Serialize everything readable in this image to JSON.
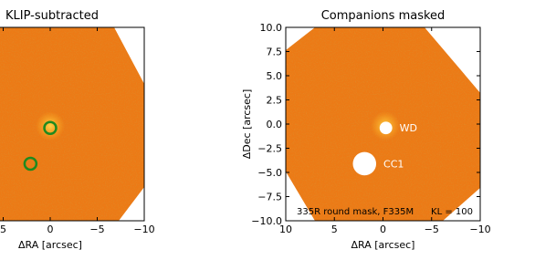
{
  "chart_data": [
    {
      "type": "image",
      "title": "KLIP-subtracted",
      "xlabel": "ΔRA [arcsec]",
      "xlim": [
        10,
        -10
      ],
      "ylim": [
        -10,
        10
      ],
      "xticks": [
        5,
        0,
        {
          "value": -5,
          "label": "−5"
        },
        {
          "value": -10,
          "label": "−10"
        }
      ],
      "markers": {
        "x": [
          0,
          2.1
        ],
        "y": [
          -0.4,
          -4.1
        ],
        "color": "#1f8a1f"
      }
    },
    {
      "type": "image",
      "title": "Companions masked",
      "xlabel": "ΔRA [arcsec]",
      "ylabel": "ΔDec [arcsec]",
      "xlim": [
        10,
        -10
      ],
      "ylim": [
        -10,
        10
      ],
      "xticks": [
        10,
        5,
        0,
        {
          "value": -5,
          "label": "−5"
        },
        {
          "value": -10,
          "label": "−10"
        }
      ],
      "yticks": [
        {
          "value": 10,
          "label": "10.0"
        },
        7.5,
        {
          "value": 5,
          "label": "5.0"
        },
        2.5,
        {
          "value": 0,
          "label": "0.0"
        },
        {
          "value": -2.5,
          "label": "−2.5"
        },
        {
          "value": -5,
          "label": "−5.0"
        },
        {
          "value": -7.5,
          "label": "−7.5"
        },
        {
          "value": -10,
          "label": "−10.0"
        }
      ],
      "masks": {
        "x": [
          -0.3,
          1.9
        ],
        "y": [
          -0.4,
          -4.1
        ],
        "r": [
          0.65,
          1.2
        ],
        "labels": [
          "WD",
          "CC1"
        ]
      },
      "annotations": [
        "335R round mask, F335M",
        "KL = 100"
      ]
    }
  ]
}
